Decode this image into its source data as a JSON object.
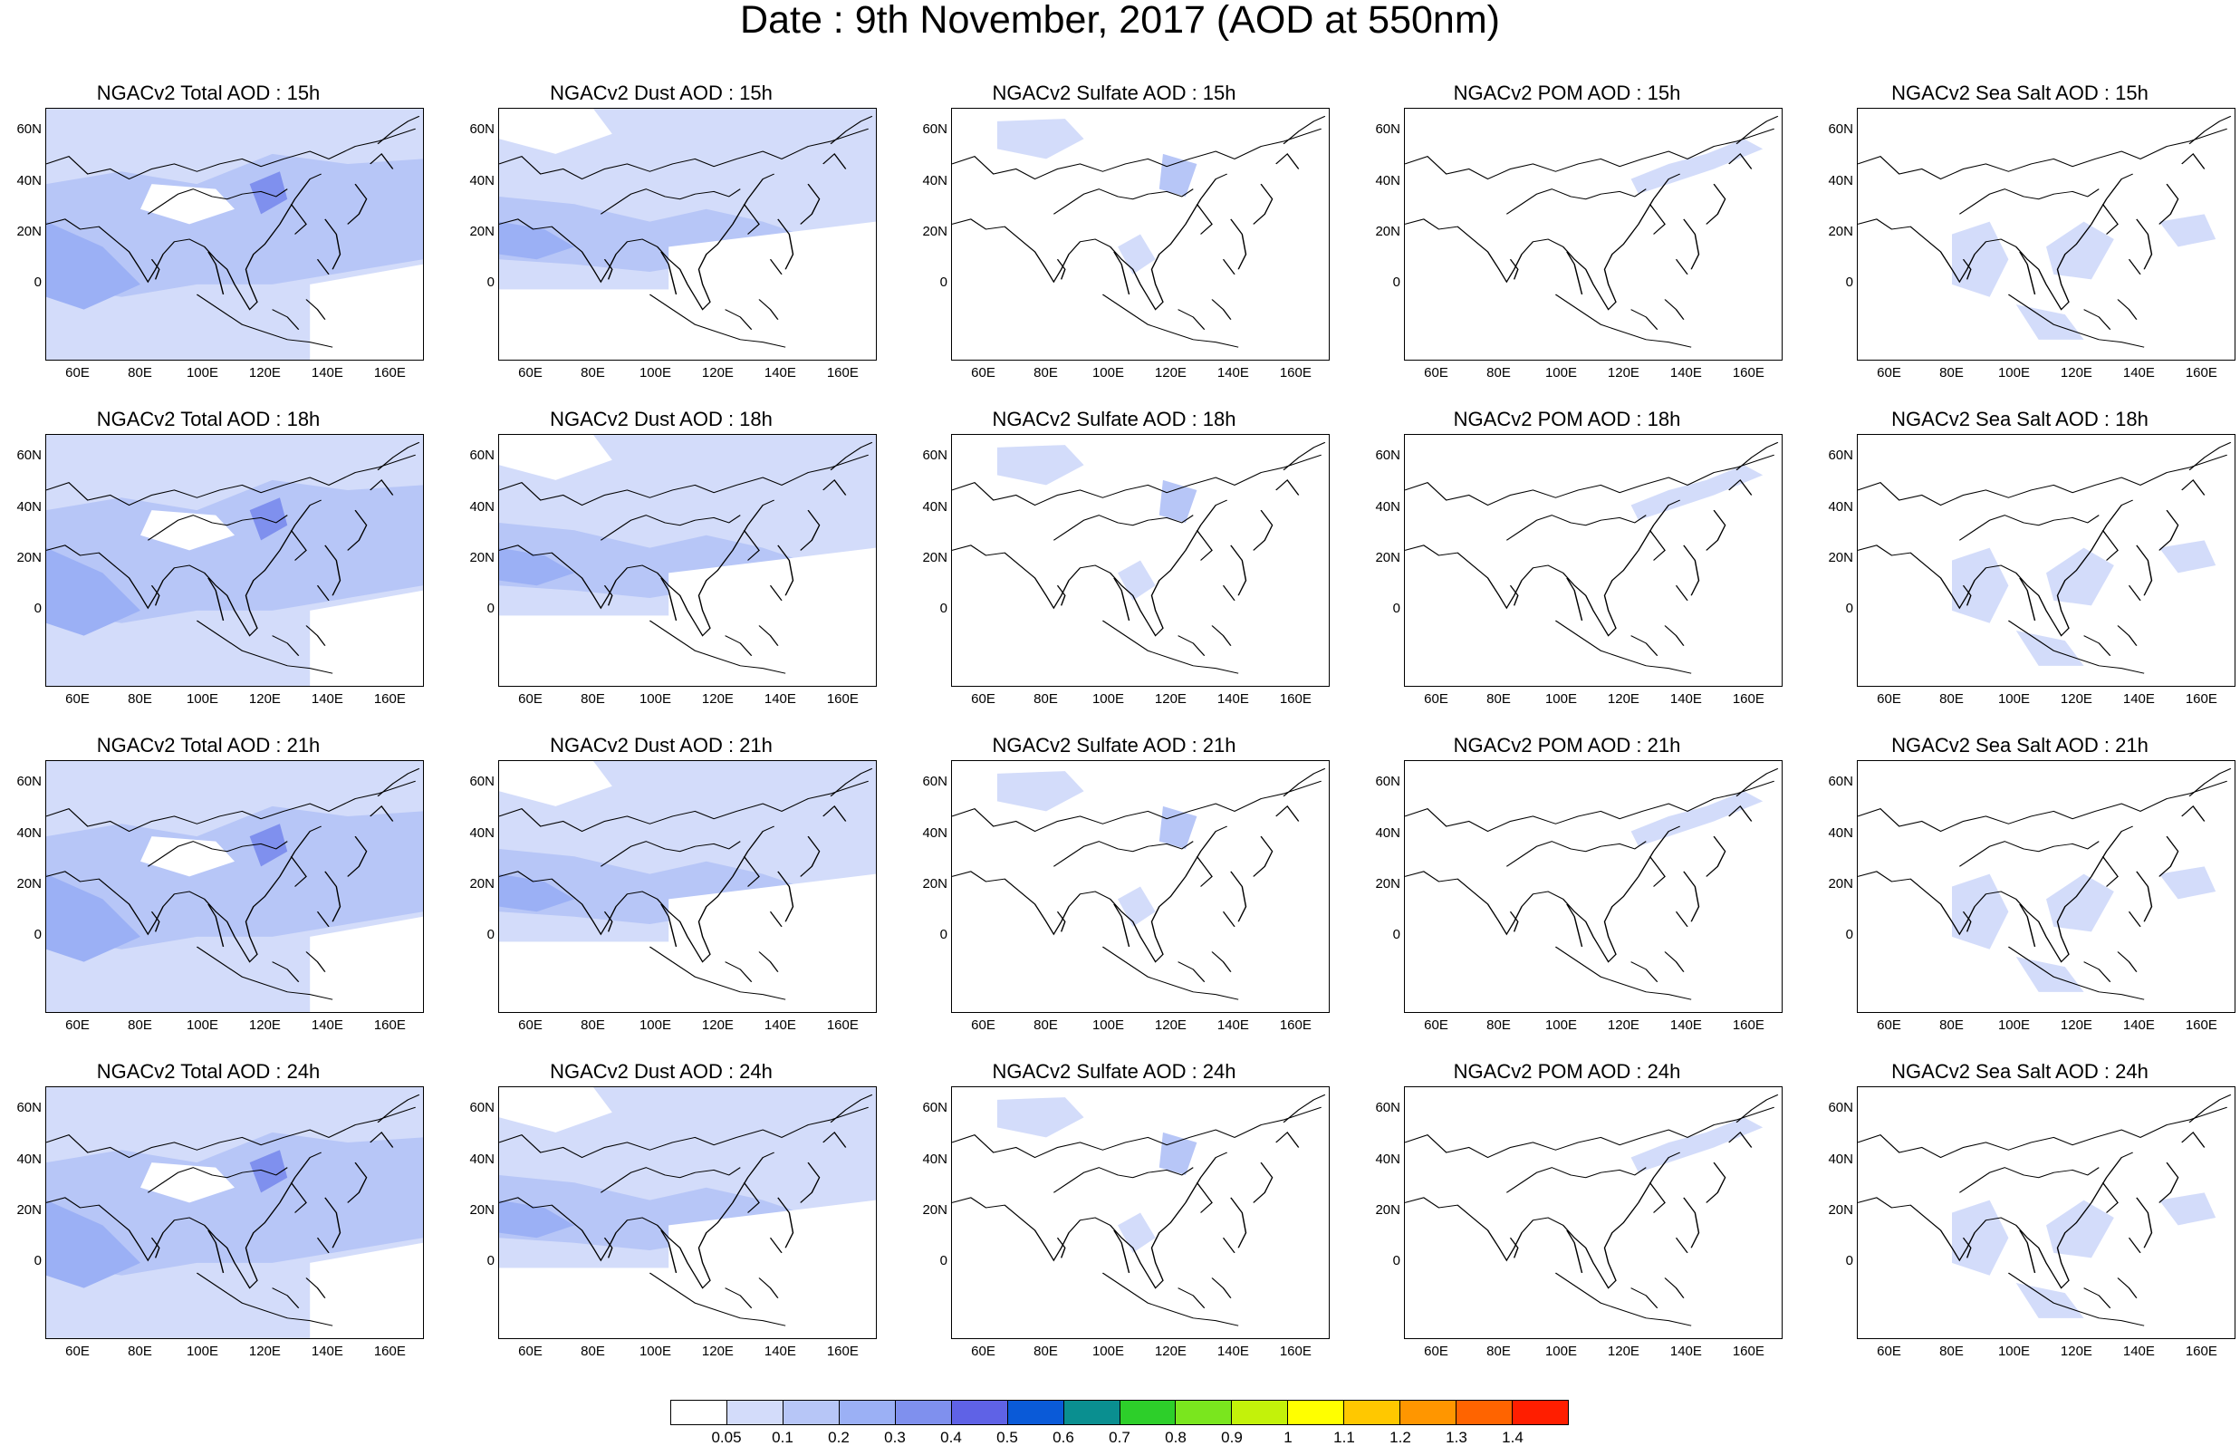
{
  "title": "Date : 9th November, 2017 (AOD at 550nm)",
  "y_ticks": [
    "60N",
    "40N",
    "20N",
    "0"
  ],
  "x_ticks": [
    "60E",
    "80E",
    "100E",
    "120E",
    "140E",
    "160E"
  ],
  "panels": [
    [
      "NGACv2 Total AOD : 15h",
      "NGACv2 Dust AOD : 15h",
      "NGACv2 Sulfate AOD : 15h",
      "NGACv2 POM AOD : 15h",
      "NGACv2 Sea Salt AOD : 15h"
    ],
    [
      "NGACv2 Total AOD : 18h",
      "NGACv2 Dust AOD : 18h",
      "NGACv2 Sulfate AOD : 18h",
      "NGACv2 POM AOD : 18h",
      "NGACv2 Sea Salt AOD : 18h"
    ],
    [
      "NGACv2 Total AOD : 21h",
      "NGACv2 Dust AOD : 21h",
      "NGACv2 Sulfate AOD : 21h",
      "NGACv2 POM AOD : 21h",
      "NGACv2 Sea Salt AOD : 21h"
    ],
    [
      "NGACv2 Total AOD : 24h",
      "NGACv2 Dust AOD : 24h",
      "NGACv2 Sulfate AOD : 24h",
      "NGACv2 POM AOD : 24h",
      "NGACv2 Sea Salt  AOD : 24h"
    ]
  ],
  "colorbar": {
    "labels": [
      "0.05",
      "0.1",
      "0.2",
      "0.3",
      "0.4",
      "0.5",
      "0.6",
      "0.7",
      "0.8",
      "0.9",
      "1",
      "1.1",
      "1.2",
      "1.3",
      "1.4"
    ],
    "colors": [
      "#ffffff",
      "#d3dcfa",
      "#b7c6f7",
      "#9bb0f5",
      "#7f90ee",
      "#5f62e6",
      "#0a5ad8",
      "#0a8f90",
      "#2dcf2a",
      "#7ae61e",
      "#c3f20a",
      "#ffff00",
      "#ffc800",
      "#ff9600",
      "#ff6400",
      "#ff1e00"
    ]
  },
  "colors": {
    "land_outline": "#000000",
    "aod_low": "#d3dcfa",
    "aod_mid": "#b7c6f7",
    "aod_high": "#9bb0f5",
    "aod_peak": "#7f90ee"
  }
}
